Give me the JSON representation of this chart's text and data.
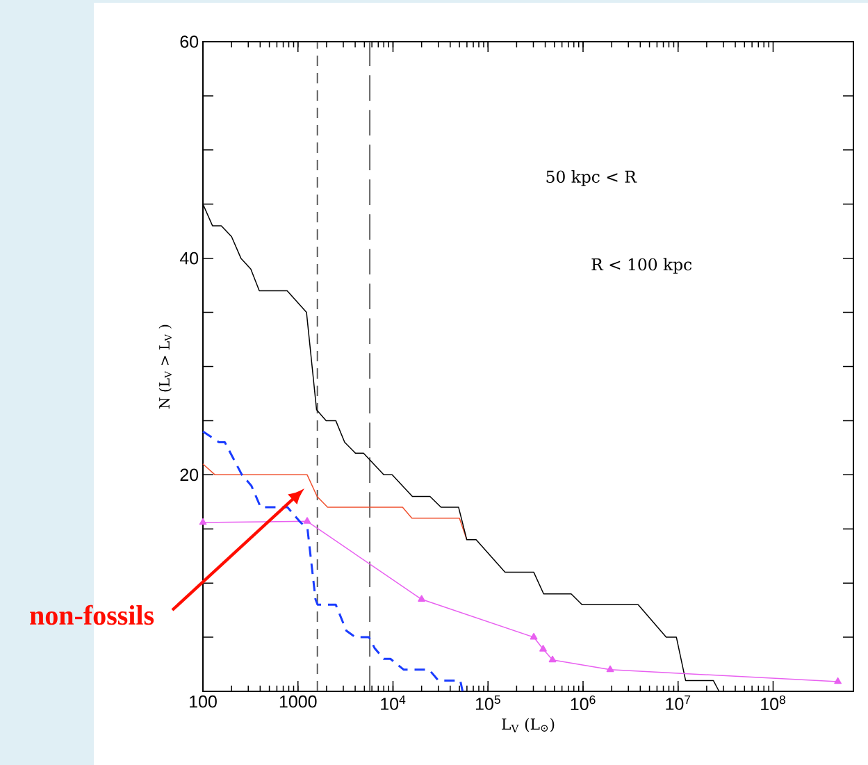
{
  "chart_data": {
    "type": "line",
    "xlabel": "L$_{V}$ (L$_{⊙}$)",
    "ylabel": "N (L$_{V}$ > L$_{V}$ )",
    "log": "x",
    "xlim": [
      100,
      700000000
    ],
    "ylim": [
      0,
      60
    ],
    "xticks": [
      100,
      1000,
      {
        "value": 10000,
        "label": "10$^{4}$"
      },
      {
        "value": 100000,
        "label": "10$^{5}$"
      },
      {
        "value": 1000000,
        "label": "10$^{6}$"
      },
      {
        "value": 10000000,
        "label": "10$^{7}$"
      },
      {
        "value": 100000000,
        "label": "10$^{8}$"
      }
    ],
    "yticks": [
      {
        "value": 5,
        "label": null
      },
      {
        "value": 10,
        "label": null
      },
      {
        "value": 15,
        "label": null
      },
      20,
      {
        "value": 25,
        "label": null
      },
      {
        "value": 30,
        "label": null
      },
      {
        "value": 35,
        "label": null
      },
      40,
      {
        "value": 45,
        "label": null
      },
      {
        "value": 50,
        "label": null
      },
      {
        "value": 55,
        "label": null
      },
      60
    ],
    "ref_lines": [
      {
        "axis": "x",
        "value": 1600,
        "color": "#555555",
        "line_style": "dashed"
      },
      {
        "axis": "x",
        "value": 5700,
        "color": "#555555",
        "line_style": "long dashed"
      }
    ],
    "annotations": [
      "50 kpc < R",
      "R < 100 kpc",
      "non-fossils"
    ],
    "series": [
      {
        "color": "#f0502e",
        "x": [
          100,
          134,
          1250,
          1590,
          2050,
          12600,
          15800,
          50000,
          59800
        ],
        "values": [
          21,
          20,
          20,
          18,
          17,
          17,
          16,
          16,
          14
        ]
      },
      {
        "color": "#000000",
        "x": [
          100,
          126,
          156,
          200,
          251,
          319,
          392,
          770,
          1230,
          1570,
          1980,
          2500,
          3100,
          4020,
          4900,
          8000,
          9800,
          16000,
          24500,
          32000,
          49000,
          59800,
          75000,
          151000,
          303000,
          385000,
          750000,
          976000,
          3800000,
          7500000,
          9600000,
          12000000,
          23500000,
          27000000
        ],
        "values": [
          45,
          43,
          43,
          42,
          40,
          39,
          37,
          37,
          35,
          26,
          25,
          25,
          23,
          22,
          22,
          20,
          20,
          18,
          18,
          17,
          17,
          14,
          14,
          11,
          11,
          9,
          9,
          8,
          8,
          5,
          5,
          1,
          1,
          0
        ]
      },
      {
        "color": "#e860f0",
        "marker": "triangle",
        "x": [
          100,
          1250,
          20000,
          303000,
          380000,
          477000,
          1930000,
          480000000
        ],
        "values": [
          15.6,
          15.7,
          8.5,
          5.0,
          3.9,
          2.9,
          2.0,
          0.9
        ]
      },
      {
        "color": "#1a3cff",
        "line_style": "dashed",
        "x": [
          100,
          148,
          170,
          257,
          323,
          405,
          776,
          1040,
          1260,
          1530,
          1610,
          2500,
          3230,
          4010,
          5600,
          6400,
          8000,
          9400,
          13000,
          24000,
          30000,
          51000,
          54000
        ],
        "values": [
          24,
          23,
          23,
          20,
          19,
          17,
          17,
          15.7,
          15,
          8.5,
          8,
          8,
          5.6,
          5,
          5,
          4,
          3,
          3,
          2,
          2,
          1,
          1,
          0
        ]
      }
    ]
  }
}
